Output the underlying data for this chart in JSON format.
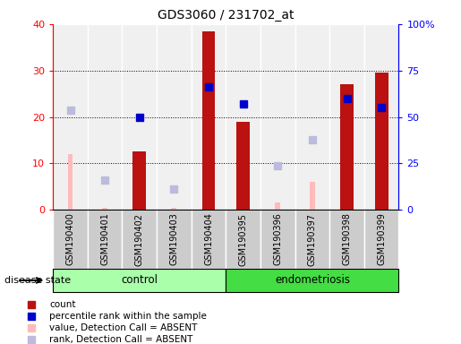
{
  "title": "GDS3060 / 231702_at",
  "samples": [
    "GSM190400",
    "GSM190401",
    "GSM190402",
    "GSM190403",
    "GSM190404",
    "GSM190395",
    "GSM190396",
    "GSM190397",
    "GSM190398",
    "GSM190399"
  ],
  "groups": [
    "control",
    "control",
    "control",
    "control",
    "control",
    "endometriosis",
    "endometriosis",
    "endometriosis",
    "endometriosis",
    "endometriosis"
  ],
  "count_values": [
    0,
    0,
    12.5,
    0,
    38.5,
    19,
    0,
    0,
    27,
    29.5
  ],
  "percentile_rank_values": [
    null,
    null,
    50,
    null,
    66,
    57,
    null,
    null,
    60,
    55
  ],
  "absent_value_values": [
    12,
    0.5,
    null,
    0.5,
    null,
    null,
    1.5,
    6,
    null,
    null
  ],
  "absent_rank_values": [
    21.5,
    6.5,
    null,
    4.5,
    null,
    null,
    9.5,
    15,
    null,
    null
  ],
  "bar_color": "#bb1111",
  "percentile_color": "#0000cc",
  "absent_value_color": "#ffbbbb",
  "absent_rank_color": "#bbbbdd",
  "ylim_left": [
    0,
    40
  ],
  "ylim_right": [
    0,
    100
  ],
  "yticks_left": [
    0,
    10,
    20,
    30,
    40
  ],
  "yticks_right": [
    0,
    25,
    50,
    75,
    100
  ],
  "yticklabels_right": [
    "0",
    "25",
    "50",
    "75",
    "100%"
  ],
  "control_group_color": "#aaffaa",
  "endometriosis_group_color": "#44dd44",
  "xtick_bg_color": "#cccccc",
  "plot_bg_color": "#f0f0f0",
  "legend_items": [
    {
      "label": "count",
      "color": "#bb1111"
    },
    {
      "label": "percentile rank within the sample",
      "color": "#0000cc"
    },
    {
      "label": "value, Detection Call = ABSENT",
      "color": "#ffbbbb"
    },
    {
      "label": "rank, Detection Call = ABSENT",
      "color": "#bbbbdd"
    }
  ]
}
